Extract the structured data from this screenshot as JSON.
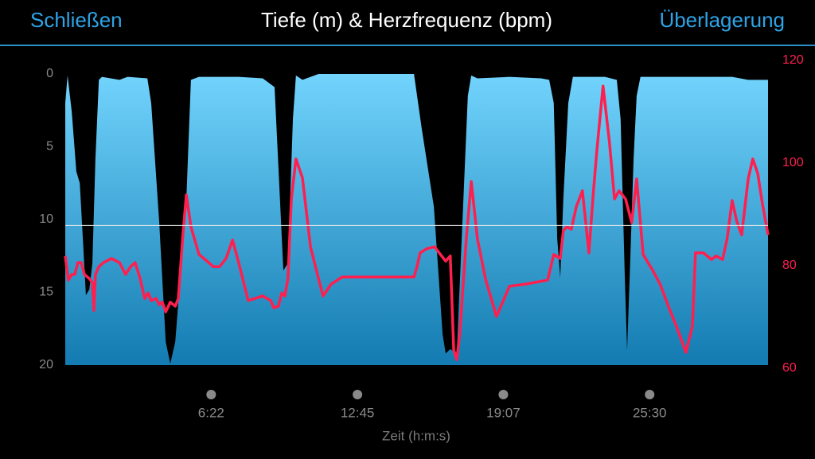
{
  "header": {
    "left_button": "Schließen",
    "right_button": "Überlagerung"
  },
  "chart_data": {
    "type": "area-line",
    "title": "Tiefe (m) & Herzfrequenz (bpm)",
    "x_label": "Zeit (h:m:s)",
    "xlim": [
      0,
      1840
    ],
    "xticks": [
      {
        "value": 382,
        "label": "6:22"
      },
      {
        "value": 765,
        "label": "12:45"
      },
      {
        "value": 1147,
        "label": "19:07"
      },
      {
        "value": 1530,
        "label": "25:30"
      }
    ],
    "ylim": [
      0,
      20
    ],
    "y_inverted": true,
    "yticks": [
      0,
      5,
      10,
      15,
      20
    ],
    "y2lim": [
      60,
      120
    ],
    "y2ticks": [
      60,
      80,
      100,
      120
    ],
    "reference_line": 10.4,
    "series": [
      {
        "name": "Tiefe",
        "color": "#5cc6f7",
        "x": [
          0,
          6,
          17,
          29,
          38,
          46,
          54,
          63,
          71,
          79,
          88,
          96,
          142,
          163,
          215,
          225,
          246,
          263,
          275,
          288,
          304,
          317,
          329,
          350,
          413,
          454,
          517,
          548,
          563,
          571,
          583,
          596,
          604,
          621,
          663,
          913,
          933,
          965,
          988,
          996,
          1008,
          1025,
          1038,
          1054,
          1063,
          1079,
          1163,
          1246,
          1267,
          1279,
          1288,
          1296,
          1304,
          1317,
          1329,
          1371,
          1413,
          1444,
          1454,
          1465,
          1471,
          1479,
          1488,
          1496,
          1506,
          1558,
          1663,
          1746,
          1788,
          1840
        ],
        "values": [
          2.0,
          0.1,
          2.6,
          6.7,
          7.5,
          11.3,
          15.2,
          14.8,
          13,
          5.8,
          0.4,
          0.2,
          0.4,
          0.2,
          0.3,
          2,
          10.2,
          18.4,
          19.9,
          18.4,
          13,
          8.6,
          0.4,
          0.2,
          0.2,
          0.2,
          0.3,
          0.9,
          9.1,
          13.5,
          13,
          3.1,
          0.1,
          0.4,
          0,
          0,
          3.7,
          9.1,
          17.9,
          19.2,
          18.9,
          19.2,
          11.3,
          1.5,
          0.1,
          0.3,
          0.2,
          0.3,
          0.4,
          2,
          11.3,
          14,
          8.6,
          2,
          0.2,
          0.2,
          0.2,
          0.4,
          3.1,
          14,
          19,
          13,
          5.8,
          1.5,
          0.2,
          0.2,
          0.2,
          0.2,
          0.4,
          0.4
        ]
      },
      {
        "name": "Herzfrequenz",
        "color": "#ff1f4f",
        "axis": "y2",
        "x": [
          0,
          8,
          17,
          25,
          33,
          42,
          50,
          63,
          71,
          75,
          79,
          88,
          100,
          121,
          142,
          158,
          171,
          183,
          196,
          208,
          217,
          225,
          238,
          246,
          254,
          263,
          275,
          288,
          296,
          308,
          317,
          329,
          350,
          371,
          388,
          404,
          421,
          438,
          454,
          479,
          517,
          538,
          546,
          558,
          567,
          575,
          583,
          592,
          604,
          621,
          642,
          663,
          675,
          696,
          725,
          808,
          913,
          921,
          929,
          946,
          967,
          979,
          996,
          1008,
          1017,
          1025,
          1033,
          1050,
          1063,
          1079,
          1100,
          1129,
          1163,
          1204,
          1263,
          1279,
          1296,
          1304,
          1313,
          1325,
          1338,
          1354,
          1371,
          1383,
          1392,
          1408,
          1425,
          1438,
          1450,
          1467,
          1483,
          1496,
          1513,
          1538,
          1558,
          1579,
          1600,
          1625,
          1642,
          1650,
          1671,
          1692,
          1704,
          1721,
          1733,
          1746,
          1758,
          1771,
          1788,
          1800,
          1813,
          1825,
          1840
        ],
        "values": [
          81.9,
          77.2,
          78.3,
          78.3,
          80.6,
          80.6,
          78.3,
          77.5,
          76.7,
          71.3,
          78.3,
          79.8,
          80.6,
          81.4,
          80.6,
          78.3,
          79.8,
          80.6,
          77.5,
          73.6,
          74.7,
          73.2,
          73.6,
          72.4,
          72.9,
          71,
          72.9,
          72.1,
          73.6,
          86,
          93.8,
          87.6,
          82.2,
          80.9,
          79.8,
          79.8,
          81.4,
          85,
          80.6,
          73.2,
          74.1,
          73.2,
          71.8,
          72.1,
          74.7,
          74.1,
          77.5,
          93,
          100.8,
          97.1,
          83.7,
          77.5,
          74.1,
          76.4,
          77.8,
          77.8,
          77.8,
          79.8,
          82.5,
          83.3,
          83.7,
          82.5,
          80.9,
          81.9,
          63.6,
          61.7,
          66.7,
          85.3,
          96.4,
          85.3,
          77.5,
          70.1,
          76,
          76.4,
          77.2,
          82.2,
          81.4,
          86.8,
          87.6,
          87.1,
          91.5,
          94.6,
          82.5,
          94.6,
          102.6,
          115,
          103.9,
          93,
          94.6,
          93,
          88.4,
          96.9,
          82.2,
          79.1,
          76.3,
          72.1,
          68.2,
          63.1,
          68.2,
          82.5,
          82.5,
          81.2,
          81.9,
          81.2,
          85.3,
          92.7,
          88.7,
          86,
          96.9,
          100.8,
          98,
          92.2,
          86
        ]
      }
    ]
  }
}
